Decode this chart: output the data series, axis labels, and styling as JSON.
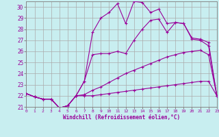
{
  "background_color": "#c8eef0",
  "line_color": "#990099",
  "grid_color": "#aaaaaa",
  "xlabel": "Windchill (Refroidissement éolien,°C)",
  "xlim": [
    0,
    23
  ],
  "ylim": [
    21,
    30.5
  ],
  "yticks": [
    21,
    22,
    23,
    24,
    25,
    26,
    27,
    28,
    29,
    30
  ],
  "xticks": [
    0,
    1,
    2,
    3,
    4,
    5,
    6,
    7,
    8,
    9,
    10,
    11,
    12,
    13,
    14,
    15,
    16,
    17,
    18,
    19,
    20,
    21,
    22,
    23
  ],
  "lines": [
    [
      22.2,
      21.9,
      21.7,
      21.7,
      20.9,
      21.1,
      22.0,
      22.0,
      22.0,
      22.1,
      22.2,
      22.3,
      22.4,
      22.5,
      22.6,
      22.7,
      22.8,
      22.9,
      23.0,
      23.1,
      23.2,
      23.3,
      23.3,
      22.0
    ],
    [
      22.2,
      21.9,
      21.7,
      21.7,
      20.9,
      21.1,
      22.0,
      22.1,
      22.5,
      22.8,
      23.2,
      23.6,
      24.0,
      24.3,
      24.6,
      24.9,
      25.2,
      25.5,
      25.7,
      25.9,
      26.0,
      26.1,
      25.7,
      22.0
    ],
    [
      22.2,
      21.9,
      21.7,
      21.7,
      20.9,
      21.1,
      22.0,
      23.3,
      25.7,
      25.8,
      25.8,
      26.0,
      25.8,
      27.0,
      28.0,
      28.8,
      28.9,
      27.7,
      28.6,
      28.5,
      27.1,
      27.0,
      26.5,
      22.0
    ],
    [
      22.2,
      21.9,
      21.7,
      21.7,
      20.9,
      21.1,
      22.0,
      23.3,
      27.7,
      29.0,
      29.5,
      30.3,
      28.5,
      30.5,
      30.4,
      29.5,
      29.8,
      28.5,
      28.6,
      28.5,
      27.2,
      27.1,
      26.8,
      22.0
    ]
  ]
}
